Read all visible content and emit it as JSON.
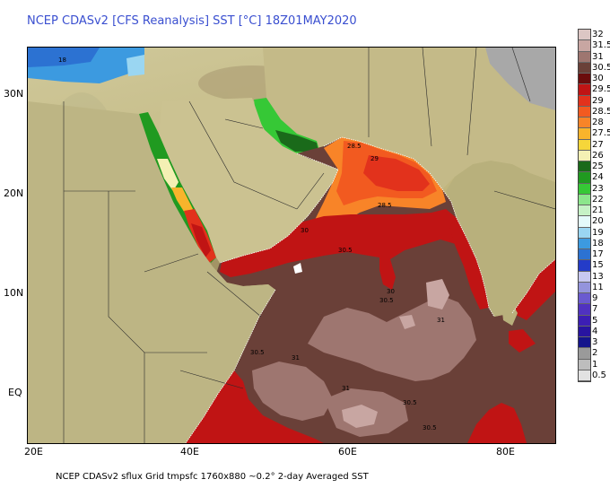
{
  "title": "NCEP CDASv2 [CFS Reanalysis] SST [°C] 18Z01MAY2020",
  "footer": "NCEP CDASv2 sflux Grid tmpsfc 1760x880 ~0.2°     2-day Averaged SST",
  "axes": {
    "x_labels": [
      "20E",
      "40E",
      "60E",
      "80E"
    ],
    "y_labels": [
      "30N",
      "20N",
      "10N",
      "EQ"
    ]
  },
  "legend": [
    {
      "label": "32",
      "color": "#dcc6c4"
    },
    {
      "label": "31.5",
      "color": "#c8a6a2"
    },
    {
      "label": "31",
      "color": "#9e7670"
    },
    {
      "label": "30.5",
      "color": "#6a4038"
    },
    {
      "label": "30",
      "color": "#6b0c0c"
    },
    {
      "label": "29.5",
      "color": "#c01414"
    },
    {
      "label": "29",
      "color": "#e2321c"
    },
    {
      "label": "28.5",
      "color": "#f25a20"
    },
    {
      "label": "28",
      "color": "#f88428"
    },
    {
      "label": "27.5",
      "color": "#f8b42c"
    },
    {
      "label": "27",
      "color": "#f6d63a"
    },
    {
      "label": "26",
      "color": "#f4f0b4"
    },
    {
      "label": "25",
      "color": "#1a6a1a"
    },
    {
      "label": "24",
      "color": "#209a20"
    },
    {
      "label": "23",
      "color": "#36c836"
    },
    {
      "label": "22",
      "color": "#8ce68c"
    },
    {
      "label": "21",
      "color": "#c6f2c6"
    },
    {
      "label": "20",
      "color": "#e4fafa"
    },
    {
      "label": "19",
      "color": "#9ad6f2"
    },
    {
      "label": "18",
      "color": "#3c9ae0"
    },
    {
      "label": "17",
      "color": "#2c72d2"
    },
    {
      "label": "15",
      "color": "#243cc8"
    },
    {
      "label": "13",
      "color": "#c8c8f0"
    },
    {
      "label": "11",
      "color": "#9494dc"
    },
    {
      "label": "9",
      "color": "#6a5ad0"
    },
    {
      "label": "7",
      "color": "#5032c0"
    },
    {
      "label": "5",
      "color": "#3c1eb4"
    },
    {
      "label": "4",
      "color": "#2814a0"
    },
    {
      "label": "3",
      "color": "#14148c"
    },
    {
      "label": "2",
      "color": "#9a9a9a"
    },
    {
      "label": "1",
      "color": "#bdbdbd"
    },
    {
      "label": "0.5",
      "color": "#e2e2e2"
    }
  ],
  "contour_labels": [
    "18",
    "28.5",
    "29",
    "28.5",
    "30",
    "30.5",
    "30",
    "30.5",
    "31",
    "31",
    "30.5",
    "31",
    "30.5",
    "30.5"
  ],
  "colors": {
    "land": "#c9c08e",
    "land_dark": "#a89a68",
    "title_blue": "#3a4fd0"
  }
}
